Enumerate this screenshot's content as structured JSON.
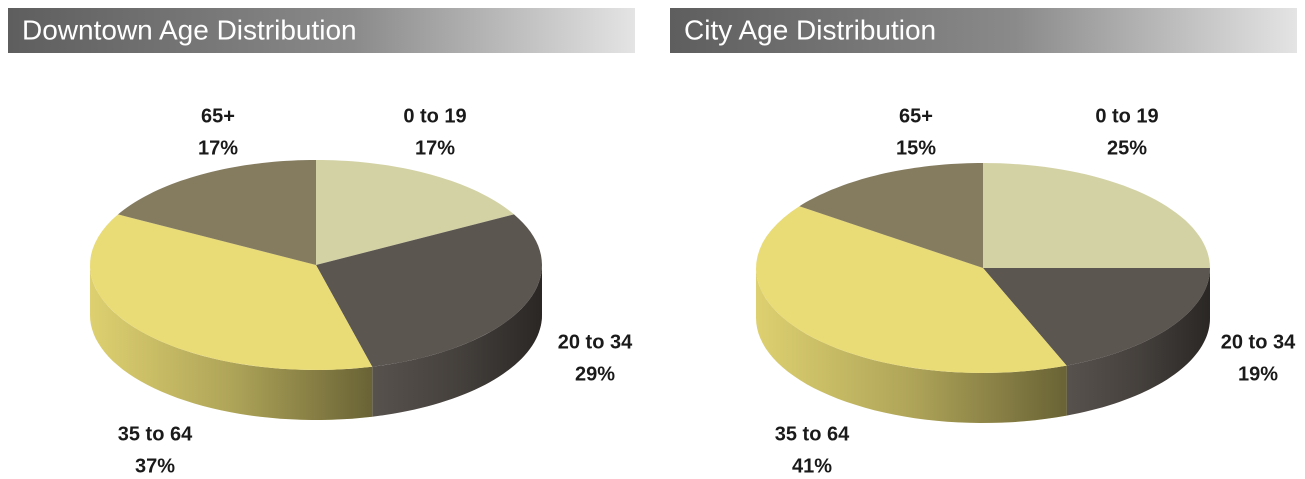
{
  "chart_data": [
    {
      "type": "pie",
      "title": "Downtown Age Distribution",
      "categories": [
        "0 to 19",
        "20 to 34",
        "35 to 64",
        "65+"
      ],
      "values": [
        17,
        29,
        37,
        17
      ],
      "value_labels": [
        "17%",
        "29%",
        "37%",
        "17%"
      ],
      "colors": [
        "#d3d2a5",
        "#5c5651",
        "#e9db76",
        "#857c60"
      ]
    },
    {
      "type": "pie",
      "title": "City Age Distribution",
      "categories": [
        "0 to 19",
        "20 to 34",
        "35 to 64",
        "65+"
      ],
      "values": [
        25,
        19,
        41,
        15
      ],
      "value_labels": [
        "25%",
        "19%",
        "41%",
        "15%"
      ],
      "colors": [
        "#d3d2a5",
        "#5c5651",
        "#e9db76",
        "#857c60"
      ]
    }
  ]
}
